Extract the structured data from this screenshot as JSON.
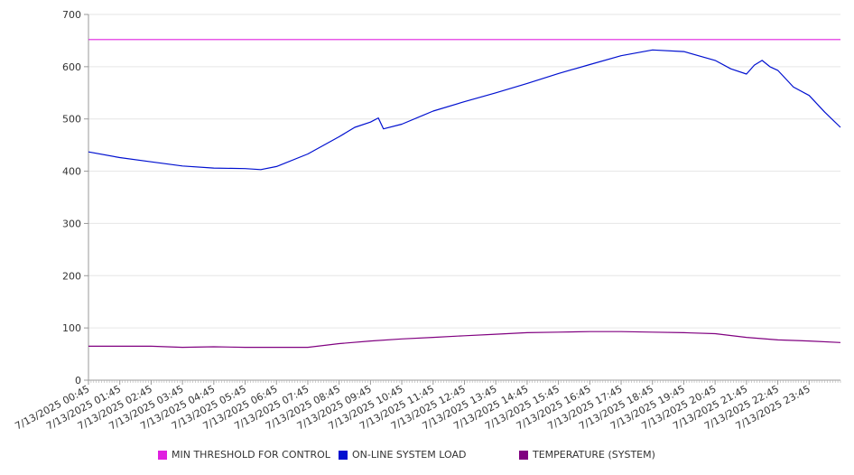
{
  "chart_data": {
    "type": "line",
    "ylim": [
      0,
      700
    ],
    "yticks": [
      0,
      100,
      200,
      300,
      400,
      500,
      600,
      700
    ],
    "x_range": [
      "7/13/2025 00:45",
      "7/14/2025 00:45"
    ],
    "x_tick_labels": [
      "7/13/2025 00:45",
      "7/13/2025 01:45",
      "7/13/2025 02:45",
      "7/13/2025 03:45",
      "7/13/2025 04:45",
      "7/13/2025 05:45",
      "7/13/2025 06:45",
      "7/13/2025 07:45",
      "7/13/2025 08:45",
      "7/13/2025 09:45",
      "7/13/2025 10:45",
      "7/13/2025 11:45",
      "7/13/2025 12:45",
      "7/13/2025 13:45",
      "7/13/2025 14:45",
      "7/13/2025 15:45",
      "7/13/2025 16:45",
      "7/13/2025 17:45",
      "7/13/2025 18:45",
      "7/13/2025 19:45",
      "7/13/2025 20:45",
      "7/13/2025 21:45",
      "7/13/2025 22:45",
      "7/13/2025 23:45"
    ],
    "grid": true,
    "legend_position": "bottom",
    "series": [
      {
        "name": "MIN THRESHOLD FOR CONTROL",
        "color": "#e020e0",
        "points": [
          [
            "7/13/2025 00:45",
            652
          ],
          [
            "7/14/2025 00:45",
            652
          ]
        ]
      },
      {
        "name": "ON-LINE SYSTEM LOAD",
        "color": "#0010d0",
        "points": [
          [
            "7/13/2025 00:45",
            437
          ],
          [
            "7/13/2025 01:45",
            426
          ],
          [
            "7/13/2025 02:45",
            418
          ],
          [
            "7/13/2025 03:45",
            410
          ],
          [
            "7/13/2025 04:45",
            406
          ],
          [
            "7/13/2025 05:45",
            405
          ],
          [
            "7/13/2025 06:15",
            403
          ],
          [
            "7/13/2025 06:45",
            409
          ],
          [
            "7/13/2025 07:45",
            433
          ],
          [
            "7/13/2025 08:45",
            466
          ],
          [
            "7/13/2025 09:15",
            484
          ],
          [
            "7/13/2025 09:45",
            494
          ],
          [
            "7/13/2025 10:00",
            502
          ],
          [
            "7/13/2025 10:10",
            481
          ],
          [
            "7/13/2025 10:45",
            490
          ],
          [
            "7/13/2025 11:45",
            515
          ],
          [
            "7/13/2025 12:45",
            533
          ],
          [
            "7/13/2025 13:45",
            550
          ],
          [
            "7/13/2025 14:45",
            568
          ],
          [
            "7/13/2025 15:45",
            587
          ],
          [
            "7/13/2025 16:45",
            604
          ],
          [
            "7/13/2025 17:45",
            621
          ],
          [
            "7/13/2025 18:45",
            632
          ],
          [
            "7/13/2025 19:45",
            629
          ],
          [
            "7/13/2025 20:45",
            612
          ],
          [
            "7/13/2025 21:15",
            596
          ],
          [
            "7/13/2025 21:45",
            586
          ],
          [
            "7/13/2025 22:00",
            603
          ],
          [
            "7/13/2025 22:15",
            612
          ],
          [
            "7/13/2025 22:30",
            600
          ],
          [
            "7/13/2025 22:45",
            593
          ],
          [
            "7/13/2025 23:15",
            561
          ],
          [
            "7/13/2025 23:45",
            545
          ],
          [
            "7/14/2025 00:15",
            513
          ],
          [
            "7/14/2025 00:45",
            484
          ]
        ]
      },
      {
        "name": "TEMPERATURE (SYSTEM)",
        "color": "#800080",
        "points": [
          [
            "7/13/2025 00:45",
            65
          ],
          [
            "7/13/2025 02:45",
            65
          ],
          [
            "7/13/2025 03:45",
            63
          ],
          [
            "7/13/2025 04:45",
            64
          ],
          [
            "7/13/2025 05:45",
            63
          ],
          [
            "7/13/2025 07:45",
            63
          ],
          [
            "7/13/2025 08:45",
            70
          ],
          [
            "7/13/2025 09:45",
            75
          ],
          [
            "7/13/2025 10:45",
            79
          ],
          [
            "7/13/2025 11:45",
            82
          ],
          [
            "7/13/2025 12:45",
            85
          ],
          [
            "7/13/2025 13:45",
            88
          ],
          [
            "7/13/2025 14:45",
            91
          ],
          [
            "7/13/2025 15:45",
            92
          ],
          [
            "7/13/2025 16:45",
            93
          ],
          [
            "7/13/2025 17:45",
            93
          ],
          [
            "7/13/2025 18:45",
            92
          ],
          [
            "7/13/2025 19:45",
            91
          ],
          [
            "7/13/2025 20:45",
            89
          ],
          [
            "7/13/2025 21:45",
            82
          ],
          [
            "7/13/2025 22:45",
            77
          ],
          [
            "7/13/2025 23:45",
            75
          ],
          [
            "7/14/2025 00:45",
            72
          ]
        ]
      }
    ]
  },
  "legend": {
    "items": [
      {
        "label": "MIN THRESHOLD FOR CONTROL",
        "color": "#e020e0"
      },
      {
        "label": "ON-LINE SYSTEM LOAD",
        "color": "#0010d0"
      },
      {
        "label": "TEMPERATURE (SYSTEM)",
        "color": "#800080"
      }
    ]
  }
}
